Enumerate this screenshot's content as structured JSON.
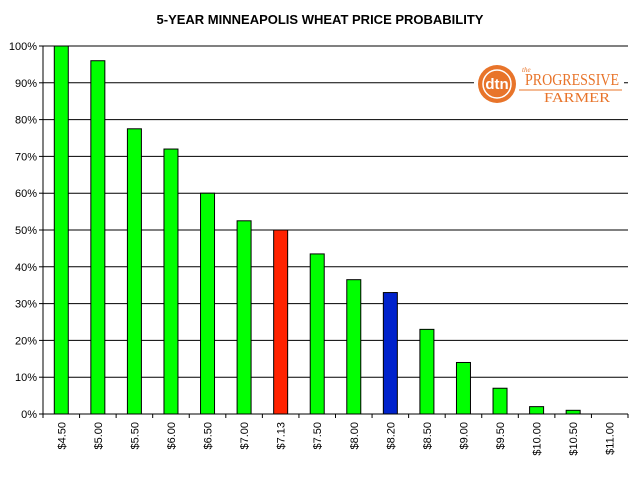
{
  "chart_data": {
    "type": "bar",
    "title": "5-YEAR MINNEAPOLIS  WHEAT PRICE PROBABILITY",
    "categories": [
      "$4.50",
      "$5.00",
      "$5.50",
      "$6.00",
      "$6.50",
      "$7.00",
      "$7.13",
      "$7.50",
      "$8.00",
      "$8.20",
      "$8.50",
      "$9.00",
      "$9.50",
      "$10.00",
      "$10.50",
      "$11.00"
    ],
    "values": [
      100,
      96,
      77.5,
      72,
      60,
      52.5,
      50,
      43.5,
      36.5,
      33,
      23,
      14,
      7,
      2,
      1,
      0
    ],
    "value_unit": "%",
    "ylim": [
      0,
      100
    ],
    "yticks": [
      "0%",
      "10%",
      "20%",
      "30%",
      "40%",
      "50%",
      "60%",
      "70%",
      "80%",
      "90%",
      "100%"
    ],
    "grid": true,
    "colors": {
      "default": "#00ff00",
      "highlight_red": "#ff2200",
      "highlight_blue": "#0022cc",
      "outline": "#000000",
      "grid": "#000000"
    },
    "highlights": {
      "$7.13": "red",
      "$8.20": "blue"
    }
  },
  "logo": {
    "badge": "dtn",
    "the": "the",
    "line1": "PROGRESSIVE",
    "line2": "FARMER",
    "color": "#e8742a"
  }
}
